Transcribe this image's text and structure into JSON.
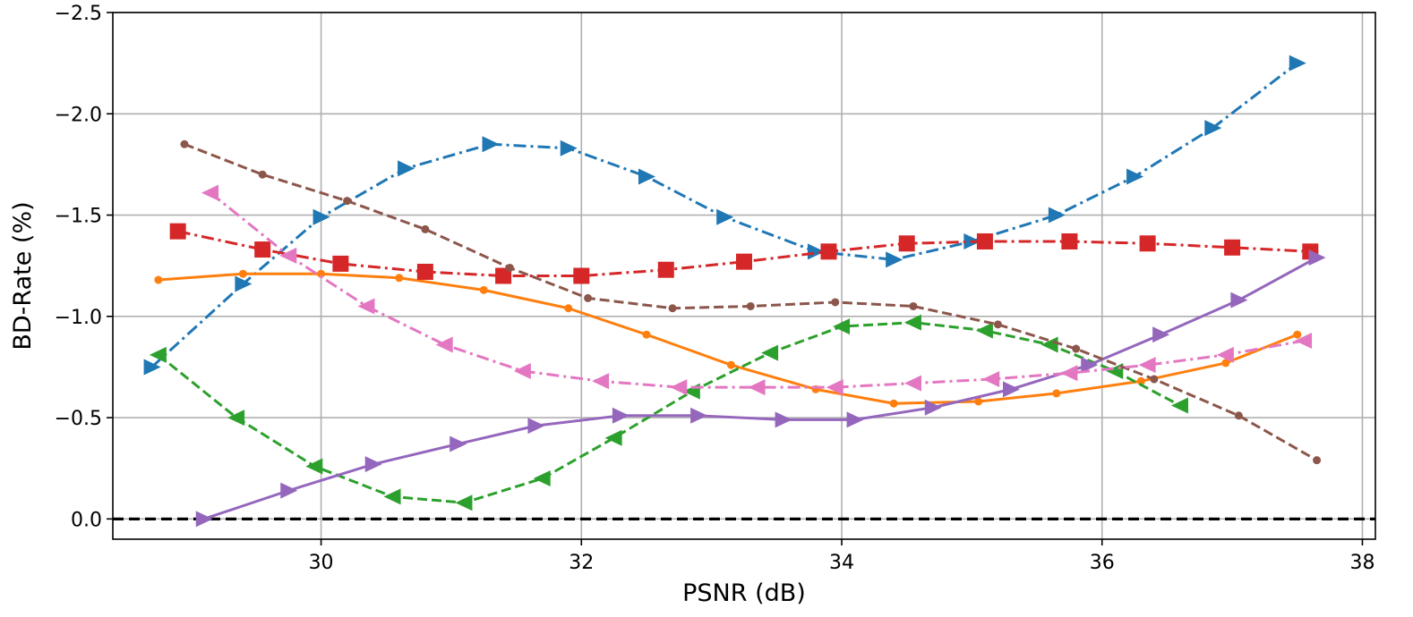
{
  "chart_data": {
    "type": "line",
    "title": "",
    "xlabel": "PSNR (dB)",
    "ylabel": "BD-Rate (%)",
    "xlim": [
      28.4,
      38.1
    ],
    "ylim": [
      0.1,
      -2.5
    ],
    "y_inverted": true,
    "grid": true,
    "x_ticks": [
      30,
      32,
      34,
      36,
      38
    ],
    "x_tick_labels": [
      "30",
      "32",
      "34",
      "36",
      "38"
    ],
    "y_ticks": [
      -2.5,
      -2.0,
      -1.5,
      -1.0,
      -0.5,
      0.0
    ],
    "y_tick_labels": [
      "−2.5",
      "−2.0",
      "−1.5",
      "−1.0",
      "−0.5",
      "0.0"
    ],
    "reference_line": {
      "y": 0.0,
      "style": "dashed",
      "color": "#000000"
    },
    "series": [
      {
        "color": "#1f77b4",
        "dash": "dashdot",
        "marker": "triangle-right",
        "x": [
          28.7,
          29.4,
          30.0,
          30.65,
          31.3,
          31.9,
          32.5,
          33.1,
          33.8,
          34.4,
          35.0,
          35.65,
          36.25,
          36.85,
          37.5
        ],
        "y": [
          -0.75,
          -1.16,
          -1.49,
          -1.73,
          -1.85,
          -1.83,
          -1.69,
          -1.49,
          -1.32,
          -1.28,
          -1.37,
          -1.5,
          -1.69,
          -1.93,
          -2.25
        ]
      },
      {
        "color": "#ff7f0e",
        "dash": "solid",
        "marker": "circle",
        "x": [
          28.75,
          29.4,
          30.0,
          30.6,
          31.25,
          31.9,
          32.5,
          33.15,
          33.8,
          34.4,
          35.05,
          35.65,
          36.3,
          36.95,
          37.5
        ],
        "y": [
          -1.18,
          -1.21,
          -1.21,
          -1.19,
          -1.13,
          -1.04,
          -0.91,
          -0.76,
          -0.64,
          -0.57,
          -0.58,
          -0.62,
          -0.68,
          -0.77,
          -0.91
        ]
      },
      {
        "color": "#2ca02c",
        "dash": "dashed",
        "marker": "triangle-left",
        "x": [
          28.75,
          29.35,
          29.95,
          30.55,
          31.1,
          31.7,
          32.25,
          32.85,
          33.45,
          34.0,
          34.55,
          35.1,
          35.6,
          36.1,
          36.6
        ],
        "y": [
          -0.81,
          -0.5,
          -0.26,
          -0.11,
          -0.08,
          -0.2,
          -0.4,
          -0.63,
          -0.82,
          -0.95,
          -0.97,
          -0.93,
          -0.86,
          -0.73,
          -0.56
        ]
      },
      {
        "color": "#d62728",
        "dash": "dashdot",
        "marker": "square",
        "x": [
          28.9,
          29.55,
          30.15,
          30.8,
          31.4,
          32.0,
          32.65,
          33.25,
          33.9,
          34.5,
          35.1,
          35.75,
          36.35,
          37.0,
          37.6
        ],
        "y": [
          -1.42,
          -1.33,
          -1.26,
          -1.22,
          -1.2,
          -1.2,
          -1.23,
          -1.27,
          -1.32,
          -1.36,
          -1.37,
          -1.37,
          -1.36,
          -1.34,
          -1.32
        ]
      },
      {
        "color": "#9467bd",
        "dash": "solid",
        "marker": "triangle-right",
        "x": [
          29.1,
          29.75,
          30.4,
          31.05,
          31.65,
          32.3,
          32.9,
          33.55,
          34.1,
          34.7,
          35.3,
          35.9,
          36.45,
          37.05,
          37.65
        ],
        "y": [
          0.0,
          -0.14,
          -0.27,
          -0.37,
          -0.46,
          -0.51,
          -0.51,
          -0.49,
          -0.49,
          -0.55,
          -0.64,
          -0.76,
          -0.91,
          -1.08,
          -1.29
        ]
      },
      {
        "color": "#8c564b",
        "dash": "dashed",
        "marker": "circle",
        "x": [
          28.95,
          29.55,
          30.2,
          30.8,
          31.45,
          32.05,
          32.7,
          33.3,
          33.95,
          34.55,
          35.2,
          35.8,
          36.4,
          37.05,
          37.65
        ],
        "y": [
          -1.85,
          -1.7,
          -1.57,
          -1.43,
          -1.24,
          -1.09,
          -1.04,
          -1.05,
          -1.07,
          -1.05,
          -0.96,
          -0.84,
          -0.69,
          -0.51,
          -0.29
        ]
      },
      {
        "color": "#e377c2",
        "dash": "dashdot",
        "marker": "triangle-left",
        "x": [
          29.15,
          29.75,
          30.35,
          30.95,
          31.55,
          32.15,
          32.75,
          33.35,
          33.95,
          34.55,
          35.15,
          35.75,
          36.35,
          36.95,
          37.55
        ],
        "y": [
          -1.61,
          -1.3,
          -1.05,
          -0.86,
          -0.73,
          -0.68,
          -0.65,
          -0.65,
          -0.65,
          -0.67,
          -0.69,
          -0.72,
          -0.76,
          -0.81,
          -0.88
        ]
      }
    ]
  }
}
